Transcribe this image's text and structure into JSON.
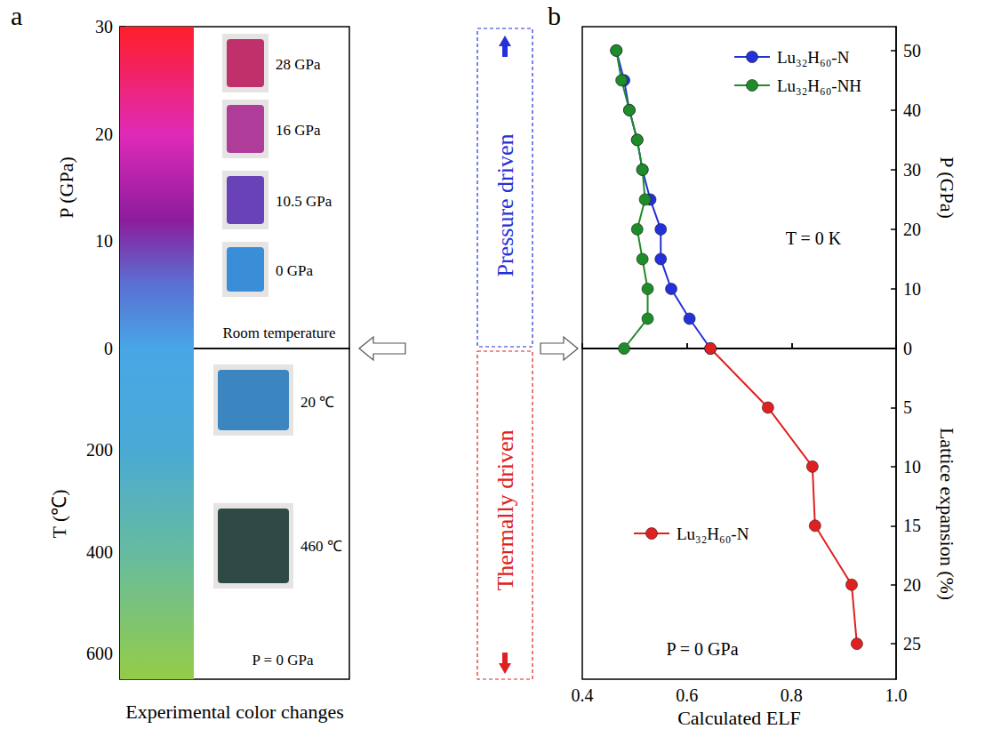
{
  "figure": {
    "letters": [
      "a",
      "b"
    ],
    "middle": [
      "Pressure driven",
      "Thermally driven"
    ]
  },
  "chart_data": [
    {
      "type": "colorbar",
      "ylabel": "P (GPa)",
      "ylim": [
        0,
        30
      ],
      "yticks": [
        0,
        10,
        20,
        30
      ],
      "gradient": {
        "values": [
          0,
          6,
          12,
          20,
          30
        ],
        "colors": [
          "#48a6e6",
          "#5a70d2",
          "#8c1c9c",
          "#e02ab8",
          "#ff1e28"
        ]
      },
      "annotations": [
        "28 GPa",
        "16 GPa",
        "10.5 GPa",
        "0 GPa",
        "Room temperature"
      ],
      "tick_labels": "y"
    },
    {
      "type": "colorbar",
      "xlabel": "Experimental color changes",
      "ylabel": "T (℃)",
      "ylim": [
        0,
        650
      ],
      "yticks": [
        0,
        200,
        400,
        600
      ],
      "gradient": {
        "values": [
          0,
          200,
          400,
          650
        ],
        "colors": [
          "#48a6e6",
          "#4aaad4",
          "#66bba0",
          "#94cc48"
        ]
      },
      "annotations": [
        "20 ℃",
        "460 ℃",
        "P = 0 GPa"
      ],
      "tick_labels": "y"
    },
    {
      "type": "line",
      "ylabel": "P (GPa)",
      "xlim": [
        0.4,
        1.0
      ],
      "xticks": [
        0.4,
        0.6,
        0.8,
        {
          "value": 1.0,
          "label": "1.0"
        }
      ],
      "ylim": [
        0,
        54
      ],
      "yticks": [
        0,
        10,
        20,
        30,
        40,
        50
      ],
      "tick_labels": "y",
      "legend": "upper right",
      "marker": "circle",
      "line_style": "solid",
      "annotations": [
        "T = 0 K"
      ],
      "series": [
        {
          "name": "Lu₃₂H₆₀-N",
          "color": "#2430d8",
          "x": [
            0.645,
            0.605,
            0.57,
            0.55,
            0.55,
            0.53,
            0.515,
            0.505,
            0.49,
            0.48,
            0.465
          ],
          "values": [
            0,
            5,
            10,
            15,
            20,
            25,
            30,
            35,
            40,
            45,
            50
          ]
        },
        {
          "name": "Lu₃₂H₆₀-NH",
          "color": "#1e8c28",
          "x": [
            0.48,
            0.525,
            0.525,
            0.515,
            0.505,
            0.52,
            0.515,
            0.505,
            0.49,
            0.475,
            0.465
          ],
          "values": [
            0,
            5,
            10,
            15,
            20,
            25,
            30,
            35,
            40,
            45,
            50
          ]
        }
      ]
    },
    {
      "type": "line",
      "xlabel": "Calculated ELF",
      "ylabel": "Lattice expansion (%)",
      "xlim": [
        0.4,
        1.0
      ],
      "xticks": [
        0.4,
        0.6,
        0.8,
        {
          "value": 1.0,
          "label": "1.0"
        }
      ],
      "ylim": [
        0,
        28
      ],
      "yticks": [
        0,
        5,
        10,
        15,
        20,
        25
      ],
      "legend": "center left",
      "marker": "circle",
      "line_style": "solid",
      "annotations": [
        "P = 0 GPa"
      ],
      "series": [
        {
          "name": "Lu₃₂H₆₀-N",
          "color": "#e02020",
          "x": [
            0.645,
            0.755,
            0.84,
            0.845,
            0.915,
            0.925
          ],
          "values": [
            0,
            5,
            10,
            15,
            20,
            25
          ]
        }
      ]
    }
  ]
}
